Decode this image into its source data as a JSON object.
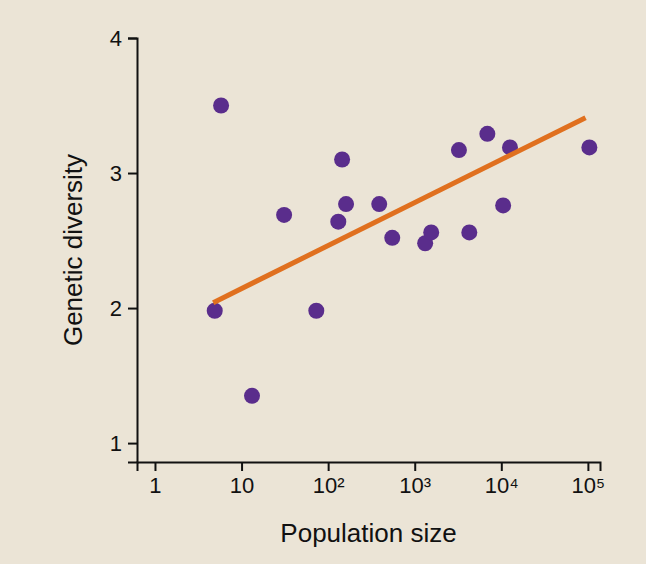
{
  "chart_data": {
    "type": "scatter",
    "x_label": "Population size",
    "y_label": "Genetic diversity",
    "log": "x",
    "grid": false,
    "xlim": [
      0.62,
      138000
    ],
    "ylim": [
      0.86,
      4
    ],
    "xticks": [
      1,
      10,
      {
        "value": 100,
        "label": "10²"
      },
      {
        "value": 1000,
        "label": "10³"
      },
      {
        "value": 10000,
        "label": "10⁴"
      },
      {
        "value": 100000,
        "label": "10⁵"
      }
    ],
    "yticks": [
      1,
      2,
      3,
      4
    ],
    "series": [
      {
        "type": "scatter",
        "marker": "circle",
        "color": "#5a2d8c",
        "x": [
          5.8,
          4.9,
          13.2,
          31,
          73,
          145,
          131,
          161,
          389,
          550,
          1320,
          1550,
          3240,
          4270,
          6900,
          10500,
          12600,
          104000
        ],
        "values": [
          3.5,
          1.98,
          1.35,
          2.69,
          1.98,
          3.1,
          2.64,
          2.77,
          2.77,
          2.52,
          2.48,
          2.56,
          3.17,
          2.56,
          3.29,
          2.76,
          3.19,
          3.19
        ]
      },
      {
        "type": "line",
        "line_style": "solid",
        "color": "#e0701f",
        "x": [
          4.7,
          94000
        ],
        "values": [
          2.04,
          3.41
        ]
      }
    ]
  }
}
